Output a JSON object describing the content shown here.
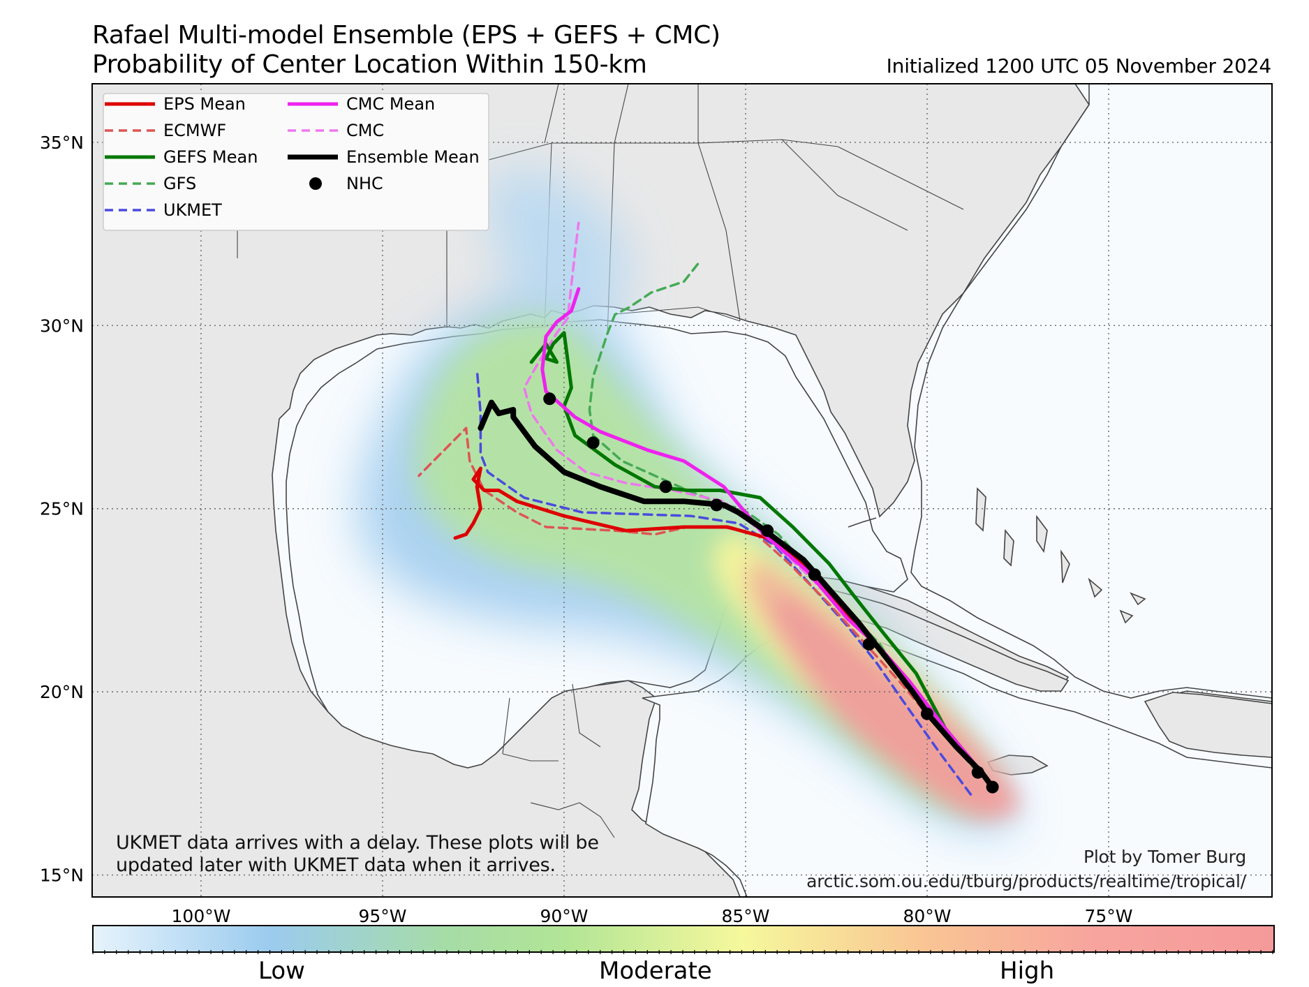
{
  "title": {
    "line1": "Rafael Multi-model Ensemble (EPS + GEFS + CMC)",
    "line2": "Probability of Center Location Within 150-km",
    "initialized": "Initialized 1200 UTC 05 November 2024"
  },
  "map": {
    "lon_range": [
      -103,
      -70.5
    ],
    "lat_range": [
      14.4,
      36.6
    ],
    "lon_ticks": [
      {
        "lon": -100,
        "label": "100°W"
      },
      {
        "lon": -95,
        "label": "95°W"
      },
      {
        "lon": -90,
        "label": "90°W"
      },
      {
        "lon": -85,
        "label": "85°W"
      },
      {
        "lon": -80,
        "label": "80°W"
      },
      {
        "lon": -75,
        "label": "75°W"
      }
    ],
    "lat_ticks": [
      {
        "lat": 15,
        "label": "15°N"
      },
      {
        "lat": 20,
        "label": "20°N"
      },
      {
        "lat": 25,
        "label": "25°N"
      },
      {
        "lat": 30,
        "label": "30°N"
      },
      {
        "lat": 35,
        "label": "35°N"
      }
    ],
    "colors": {
      "ocean": "#f7fbfe",
      "land": "#e8e8e8",
      "coast": "#444444"
    }
  },
  "legend": [
    {
      "label": "EPS Mean",
      "color": "#dd0000",
      "style": "solid"
    },
    {
      "label": "ECMWF",
      "color": "#dd5555",
      "style": "dashed"
    },
    {
      "label": "GEFS Mean",
      "color": "#007700",
      "style": "solid"
    },
    {
      "label": "GFS",
      "color": "#44aa55",
      "style": "dashed"
    },
    {
      "label": "UKMET",
      "color": "#4a4ae0",
      "style": "dashed"
    },
    {
      "label": "CMC Mean",
      "color": "#ee22ee",
      "style": "solid"
    },
    {
      "label": "CMC",
      "color": "#ee77ee",
      "style": "dashed"
    },
    {
      "label": "Ensemble Mean",
      "color": "#000000",
      "style": "solid"
    },
    {
      "label": "NHC",
      "color": "#000000",
      "style": "marker"
    }
  ],
  "tracks": {
    "eps_mean": [
      [
        -78.5,
        17.8
      ],
      [
        -79.5,
        19.0
      ],
      [
        -80.5,
        20.3
      ],
      [
        -81.3,
        21.2
      ],
      [
        -82.2,
        22.1
      ],
      [
        -83.2,
        23.3
      ],
      [
        -84.4,
        24.2
      ],
      [
        -85.5,
        24.5
      ],
      [
        -86.7,
        24.5
      ],
      [
        -88.3,
        24.4
      ],
      [
        -90.0,
        24.8
      ],
      [
        -91.3,
        25.2
      ],
      [
        -91.8,
        25.5
      ],
      [
        -92.2,
        25.5
      ],
      [
        -92.5,
        25.8
      ],
      [
        -92.3,
        26.1
      ],
      [
        -92.4,
        25.6
      ],
      [
        -92.3,
        25.0
      ],
      [
        -92.5,
        24.6
      ],
      [
        -92.7,
        24.3
      ],
      [
        -93.0,
        24.2
      ]
    ],
    "ecmwf": [
      [
        -78.6,
        17.8
      ],
      [
        -79.6,
        18.9
      ],
      [
        -80.6,
        20.1
      ],
      [
        -81.6,
        21.2
      ],
      [
        -82.7,
        22.4
      ],
      [
        -83.8,
        23.5
      ],
      [
        -84.7,
        24.3
      ],
      [
        -85.6,
        24.5
      ],
      [
        -86.6,
        24.5
      ],
      [
        -87.5,
        24.3
      ],
      [
        -88.6,
        24.4
      ],
      [
        -90.5,
        24.5
      ],
      [
        -91.3,
        24.9
      ],
      [
        -92.2,
        25.5
      ],
      [
        -92.6,
        26.3
      ],
      [
        -92.7,
        27.2
      ],
      [
        -93.4,
        26.5
      ],
      [
        -94.0,
        25.9
      ]
    ],
    "gefs_mean": [
      [
        -78.5,
        17.8
      ],
      [
        -79.5,
        19.0
      ],
      [
        -80.3,
        20.5
      ],
      [
        -81.2,
        21.6
      ],
      [
        -82.0,
        22.6
      ],
      [
        -82.7,
        23.5
      ],
      [
        -83.7,
        24.5
      ],
      [
        -84.6,
        25.3
      ],
      [
        -85.7,
        25.5
      ],
      [
        -86.6,
        25.5
      ],
      [
        -87.5,
        25.6
      ],
      [
        -88.6,
        26.2
      ],
      [
        -89.7,
        27.0
      ],
      [
        -90.0,
        27.8
      ],
      [
        -89.8,
        28.3
      ],
      [
        -90.0,
        29.8
      ],
      [
        -90.3,
        29.5
      ],
      [
        -90.5,
        29.1
      ],
      [
        -90.2,
        29.0
      ],
      [
        -90.5,
        29.5
      ],
      [
        -90.9,
        29.0
      ]
    ],
    "gfs": [
      [
        -78.6,
        17.8
      ],
      [
        -79.6,
        18.9
      ],
      [
        -80.6,
        20.2
      ],
      [
        -81.3,
        21.3
      ],
      [
        -82.2,
        22.2
      ],
      [
        -83.1,
        23.2
      ],
      [
        -84.1,
        24.3
      ],
      [
        -85.1,
        25.0
      ],
      [
        -85.6,
        25.1
      ],
      [
        -86.6,
        25.5
      ],
      [
        -88.4,
        26.3
      ],
      [
        -89.2,
        27.0
      ],
      [
        -89.3,
        27.7
      ],
      [
        -89.2,
        28.6
      ],
      [
        -88.8,
        29.8
      ],
      [
        -88.6,
        30.3
      ],
      [
        -88.2,
        30.5
      ],
      [
        -87.6,
        30.9
      ],
      [
        -86.7,
        31.2
      ],
      [
        -86.3,
        31.7
      ]
    ],
    "ukmet": [
      [
        -78.8,
        17.2
      ],
      [
        -79.7,
        18.4
      ],
      [
        -80.7,
        19.8
      ],
      [
        -81.4,
        20.8
      ],
      [
        -82.2,
        21.8
      ],
      [
        -83.1,
        22.8
      ],
      [
        -84.2,
        24.0
      ],
      [
        -85.2,
        24.6
      ],
      [
        -86.5,
        24.8
      ],
      [
        -89.5,
        24.9
      ],
      [
        -91.1,
        25.3
      ],
      [
        -92.1,
        26.0
      ],
      [
        -92.3,
        26.5
      ],
      [
        -92.3,
        27.6
      ],
      [
        -92.4,
        28.8
      ]
    ],
    "cmc_mean": [
      [
        -78.5,
        17.8
      ],
      [
        -79.5,
        19.0
      ],
      [
        -80.5,
        20.3
      ],
      [
        -81.3,
        21.2
      ],
      [
        -82.2,
        22.0
      ],
      [
        -83.3,
        23.3
      ],
      [
        -84.5,
        24.3
      ],
      [
        -85.6,
        25.6
      ],
      [
        -86.7,
        26.3
      ],
      [
        -87.7,
        26.6
      ],
      [
        -89.0,
        27.1
      ],
      [
        -89.7,
        27.5
      ],
      [
        -90.5,
        28.2
      ],
      [
        -90.6,
        28.8
      ],
      [
        -90.5,
        29.7
      ],
      [
        -90.2,
        30.1
      ],
      [
        -89.8,
        30.4
      ],
      [
        -89.6,
        31.0
      ]
    ],
    "cmc": [
      [
        -78.5,
        17.8
      ],
      [
        -79.5,
        19.0
      ],
      [
        -80.5,
        20.2
      ],
      [
        -81.2,
        21.1
      ],
      [
        -82.2,
        22.1
      ],
      [
        -83.3,
        23.2
      ],
      [
        -84.6,
        24.4
      ],
      [
        -85.6,
        25.2
      ],
      [
        -87.0,
        25.5
      ],
      [
        -88.3,
        25.7
      ],
      [
        -89.4,
        26.0
      ],
      [
        -90.2,
        26.6
      ],
      [
        -90.9,
        27.6
      ],
      [
        -91.1,
        28.3
      ],
      [
        -90.7,
        29.0
      ],
      [
        -90.2,
        29.8
      ],
      [
        -89.9,
        30.2
      ],
      [
        -89.8,
        31.1
      ],
      [
        -89.7,
        32.0
      ],
      [
        -89.6,
        32.8
      ]
    ],
    "ensemble_mean": [
      [
        -78.2,
        17.4
      ],
      [
        -78.5,
        17.8
      ],
      [
        -79.2,
        18.5
      ],
      [
        -79.9,
        19.3
      ],
      [
        -80.4,
        20.0
      ],
      [
        -81.1,
        20.9
      ],
      [
        -81.9,
        21.9
      ],
      [
        -82.7,
        22.8
      ],
      [
        -83.4,
        23.6
      ],
      [
        -84.6,
        24.5
      ],
      [
        -85.2,
        24.9
      ],
      [
        -85.6,
        25.1
      ],
      [
        -86.7,
        25.2
      ],
      [
        -87.8,
        25.2
      ],
      [
        -89.0,
        25.6
      ],
      [
        -90.0,
        26.0
      ],
      [
        -90.8,
        26.7
      ],
      [
        -91.4,
        27.5
      ],
      [
        -91.4,
        27.7
      ],
      [
        -91.8,
        27.6
      ],
      [
        -92.0,
        27.9
      ],
      [
        -92.3,
        27.2
      ]
    ],
    "nhc_points": [
      [
        -78.2,
        17.4
      ],
      [
        -78.6,
        17.8
      ],
      [
        -80.0,
        19.4
      ],
      [
        -81.6,
        21.3
      ],
      [
        -83.1,
        23.2
      ],
      [
        -84.4,
        24.4
      ],
      [
        -85.8,
        25.1
      ],
      [
        -87.2,
        25.6
      ],
      [
        -89.2,
        26.8
      ],
      [
        -90.4,
        28.0
      ]
    ]
  },
  "colorbar": {
    "labels": [
      "Low",
      "Moderate",
      "High"
    ]
  },
  "notes": {
    "ukmet_line1": "UKMET data arrives with a delay. These plots will be",
    "ukmet_line2": "updated later with UKMET data when it arrives.",
    "credit_line1": "Plot by Tomer Burg",
    "credit_line2": "arctic.som.ou.edu/tburg/products/realtime/tropical/"
  }
}
